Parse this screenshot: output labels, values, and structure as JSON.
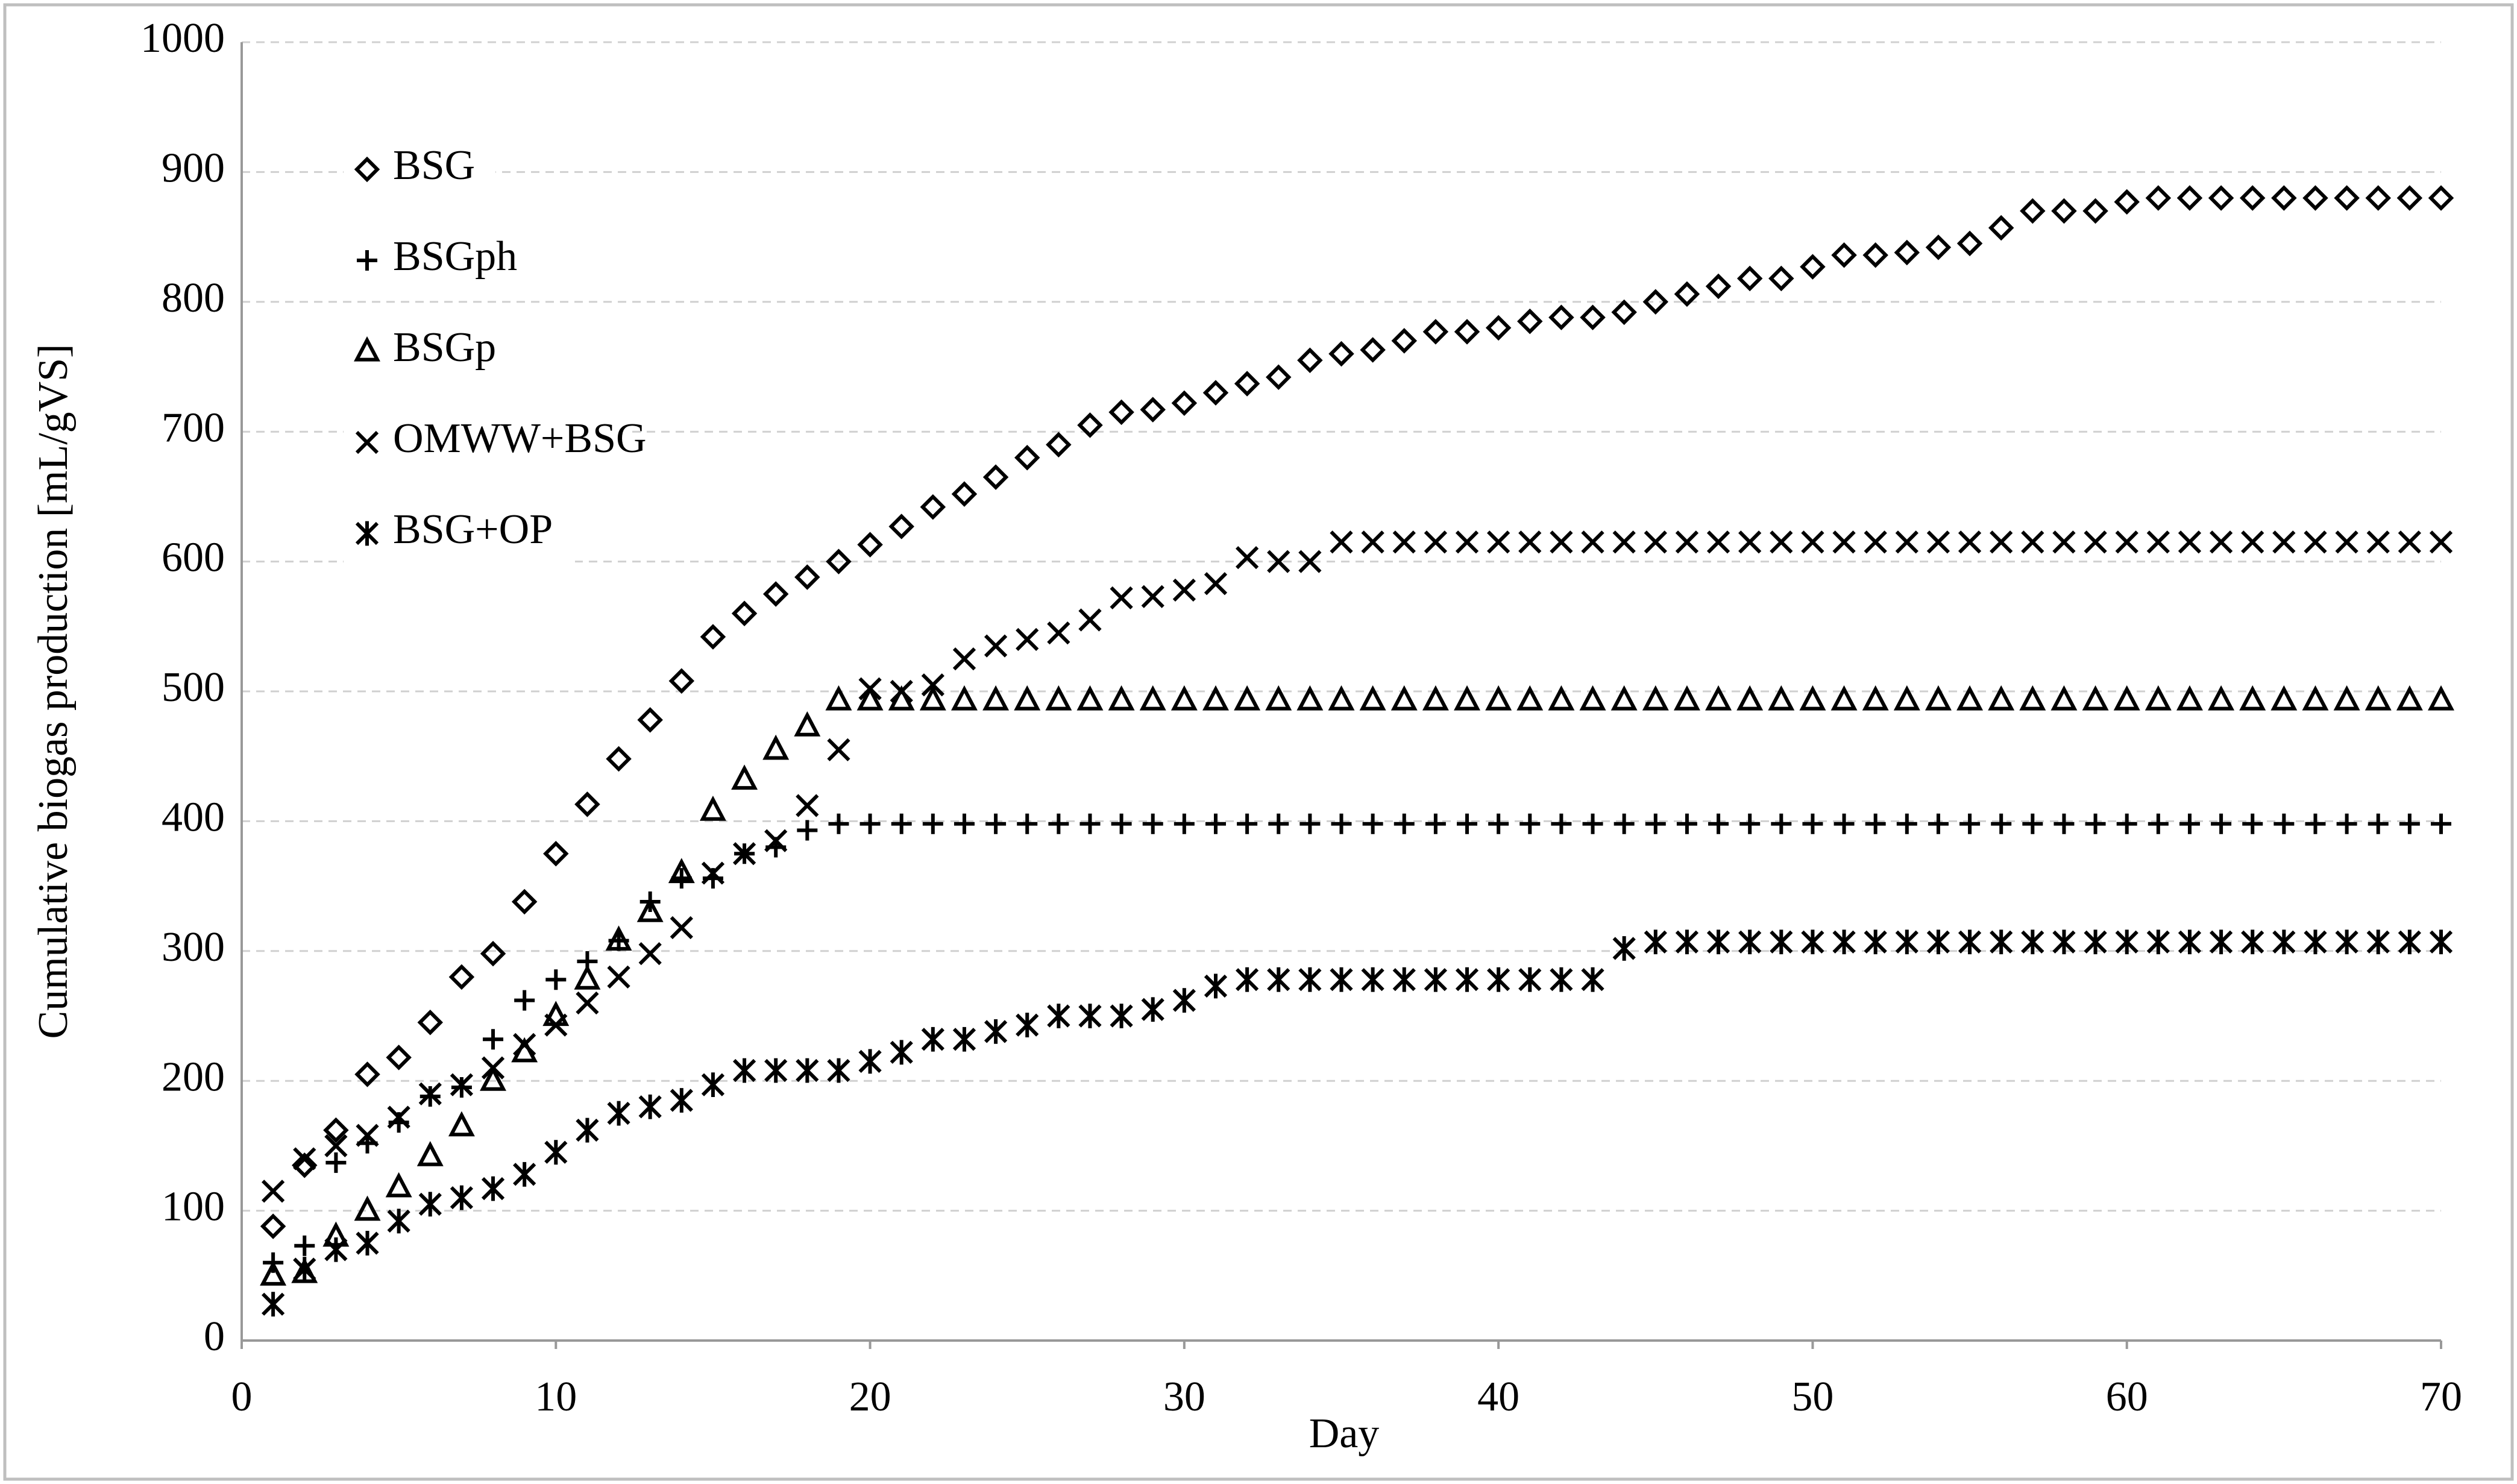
{
  "chart_data": {
    "type": "scatter",
    "xlabel": "Day",
    "ylabel": "Cumulative biogas production [mL/gVS]",
    "xlim": [
      0,
      70
    ],
    "ylim": [
      0,
      1000
    ],
    "xticks": [
      0,
      10,
      20,
      30,
      40,
      50,
      60,
      70
    ],
    "yticks": [
      0,
      100,
      200,
      300,
      400,
      500,
      600,
      700,
      800,
      900,
      1000
    ],
    "grid": true,
    "legend": "upper left",
    "x": [
      1,
      2,
      3,
      4,
      5,
      6,
      7,
      8,
      9,
      10,
      11,
      12,
      13,
      14,
      15,
      16,
      17,
      18,
      19,
      20,
      21,
      22,
      23,
      24,
      25,
      26,
      27,
      28,
      29,
      30,
      31,
      32,
      33,
      34,
      35,
      36,
      37,
      38,
      39,
      40,
      41,
      42,
      43,
      44,
      45,
      46,
      47,
      48,
      49,
      50,
      51,
      52,
      53,
      54,
      55,
      56,
      57,
      58,
      59,
      60,
      61,
      62,
      63,
      64,
      65,
      66,
      67,
      68,
      69,
      70
    ],
    "series": [
      {
        "name": "BSG",
        "color": "#000000",
        "marker": "diamond",
        "values": [
          88,
          135,
          162,
          205,
          218,
          245,
          280,
          298,
          338,
          375,
          413,
          448,
          478,
          508,
          542,
          560,
          575,
          588,
          600,
          613,
          627,
          642,
          652,
          665,
          680,
          690,
          705,
          715,
          717,
          722,
          730,
          737,
          742,
          755,
          760,
          763,
          770,
          777,
          777,
          780,
          785,
          788,
          788,
          792,
          800,
          806,
          812,
          818,
          818,
          827,
          836,
          836,
          838,
          842,
          845,
          857,
          870,
          870,
          870,
          877,
          880,
          880,
          880,
          880,
          880,
          880,
          880,
          880,
          880,
          880
        ]
      },
      {
        "name": "BSGph",
        "color": "#000000",
        "marker": "plus",
        "values": [
          60,
          73,
          137,
          152,
          168,
          188,
          195,
          232,
          262,
          278,
          292,
          308,
          338,
          356,
          356,
          375,
          380,
          393,
          398,
          398,
          398,
          398,
          398,
          398,
          398,
          398,
          398,
          398,
          398,
          398,
          398,
          398,
          398,
          398,
          398,
          398,
          398,
          398,
          398,
          398,
          398,
          398,
          398,
          398,
          398,
          398,
          398,
          398,
          398,
          398,
          398,
          398,
          398,
          398,
          398,
          398,
          398,
          398,
          398,
          398,
          398,
          398,
          398,
          398,
          398,
          398,
          398,
          398,
          398,
          398
        ]
      },
      {
        "name": "BSGp",
        "color": "#000000",
        "marker": "triangle",
        "values": [
          50,
          52,
          80,
          100,
          118,
          142,
          165,
          200,
          222,
          250,
          278,
          308,
          330,
          360,
          408,
          432,
          455,
          473,
          493,
          493,
          493,
          493,
          493,
          493,
          493,
          493,
          493,
          493,
          493,
          493,
          493,
          493,
          493,
          493,
          493,
          493,
          493,
          493,
          493,
          493,
          493,
          493,
          493,
          493,
          493,
          493,
          493,
          493,
          493,
          493,
          493,
          493,
          493,
          493,
          493,
          493,
          493,
          493,
          493,
          493,
          493,
          493,
          493,
          493,
          493,
          493,
          493,
          493,
          493,
          493
        ]
      },
      {
        "name": "OMWW+BSG",
        "color": "#000000",
        "marker": "x",
        "values": [
          115,
          140,
          150,
          158,
          172,
          190,
          197,
          210,
          228,
          243,
          260,
          280,
          298,
          318,
          360,
          375,
          385,
          412,
          455,
          502,
          500,
          505,
          525,
          535,
          540,
          545,
          555,
          572,
          573,
          578,
          583,
          603,
          600,
          600,
          615,
          615,
          615,
          615,
          615,
          615,
          615,
          615,
          615,
          615,
          615,
          615,
          615,
          615,
          615,
          615,
          615,
          615,
          615,
          615,
          615,
          615,
          615,
          615,
          615,
          615,
          615,
          615,
          615,
          615,
          615,
          615,
          615,
          615,
          615,
          615
        ]
      },
      {
        "name": "BSG+OP",
        "color": "#000000",
        "marker": "asterisk",
        "values": [
          28,
          55,
          70,
          75,
          92,
          105,
          110,
          117,
          128,
          145,
          162,
          175,
          180,
          185,
          197,
          208,
          208,
          208,
          208,
          215,
          222,
          232,
          232,
          238,
          243,
          250,
          250,
          250,
          255,
          262,
          273,
          278,
          278,
          278,
          278,
          278,
          278,
          278,
          278,
          278,
          278,
          278,
          278,
          302,
          307,
          307,
          307,
          307,
          307,
          307,
          307,
          307,
          307,
          307,
          307,
          307,
          307,
          307,
          307,
          307,
          307,
          307,
          307,
          307,
          307,
          307,
          307,
          307,
          307,
          307
        ]
      }
    ]
  }
}
